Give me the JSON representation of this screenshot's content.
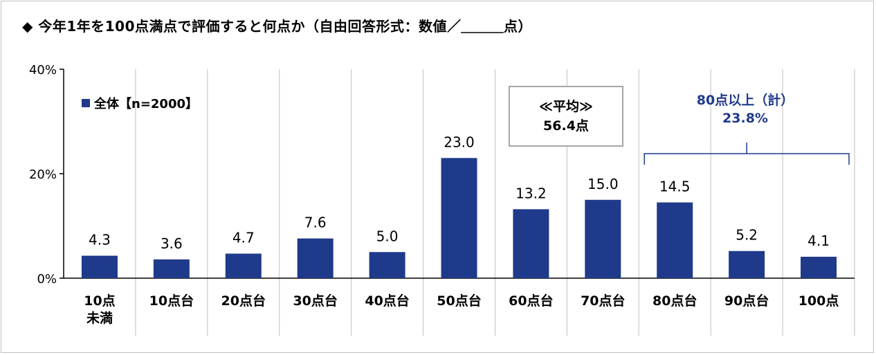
{
  "title": "◆ 今年1年を100点満点で評価すると何点か（自由回答形式：数値／＿＿＿点）",
  "legend": {
    "label": "全体【n=2000】"
  },
  "average_box": {
    "line1": "≪平均≫",
    "line2": "56.4点"
  },
  "summary": {
    "line1": "80点以上（計）",
    "line2": "23.8%"
  },
  "colors": {
    "bar": "#1f3a8a",
    "summary_text": "#1f3a8a",
    "grid": "#bfbfbf"
  },
  "chart_data": {
    "type": "bar",
    "categories": [
      "10点\n未満",
      "10点台",
      "20点台",
      "30点台",
      "40点台",
      "50点台",
      "60点台",
      "70点台",
      "80点台",
      "90点台",
      "100点"
    ],
    "series": [
      {
        "name": "全体【n=2000】",
        "values": [
          4.3,
          3.6,
          4.7,
          7.6,
          5.0,
          23.0,
          13.2,
          15.0,
          14.5,
          5.2,
          4.1
        ]
      }
    ],
    "data_labels": [
      "4.3",
      "3.6",
      "4.7",
      "7.6",
      "5.0",
      "23.0",
      "13.2",
      "15.0",
      "14.5",
      "5.2",
      "4.1"
    ],
    "y_ticks": [
      "0%",
      "20%",
      "40%"
    ],
    "ylim": [
      0,
      40
    ],
    "grid": "vertical category separators",
    "legend_position": "top-left"
  }
}
